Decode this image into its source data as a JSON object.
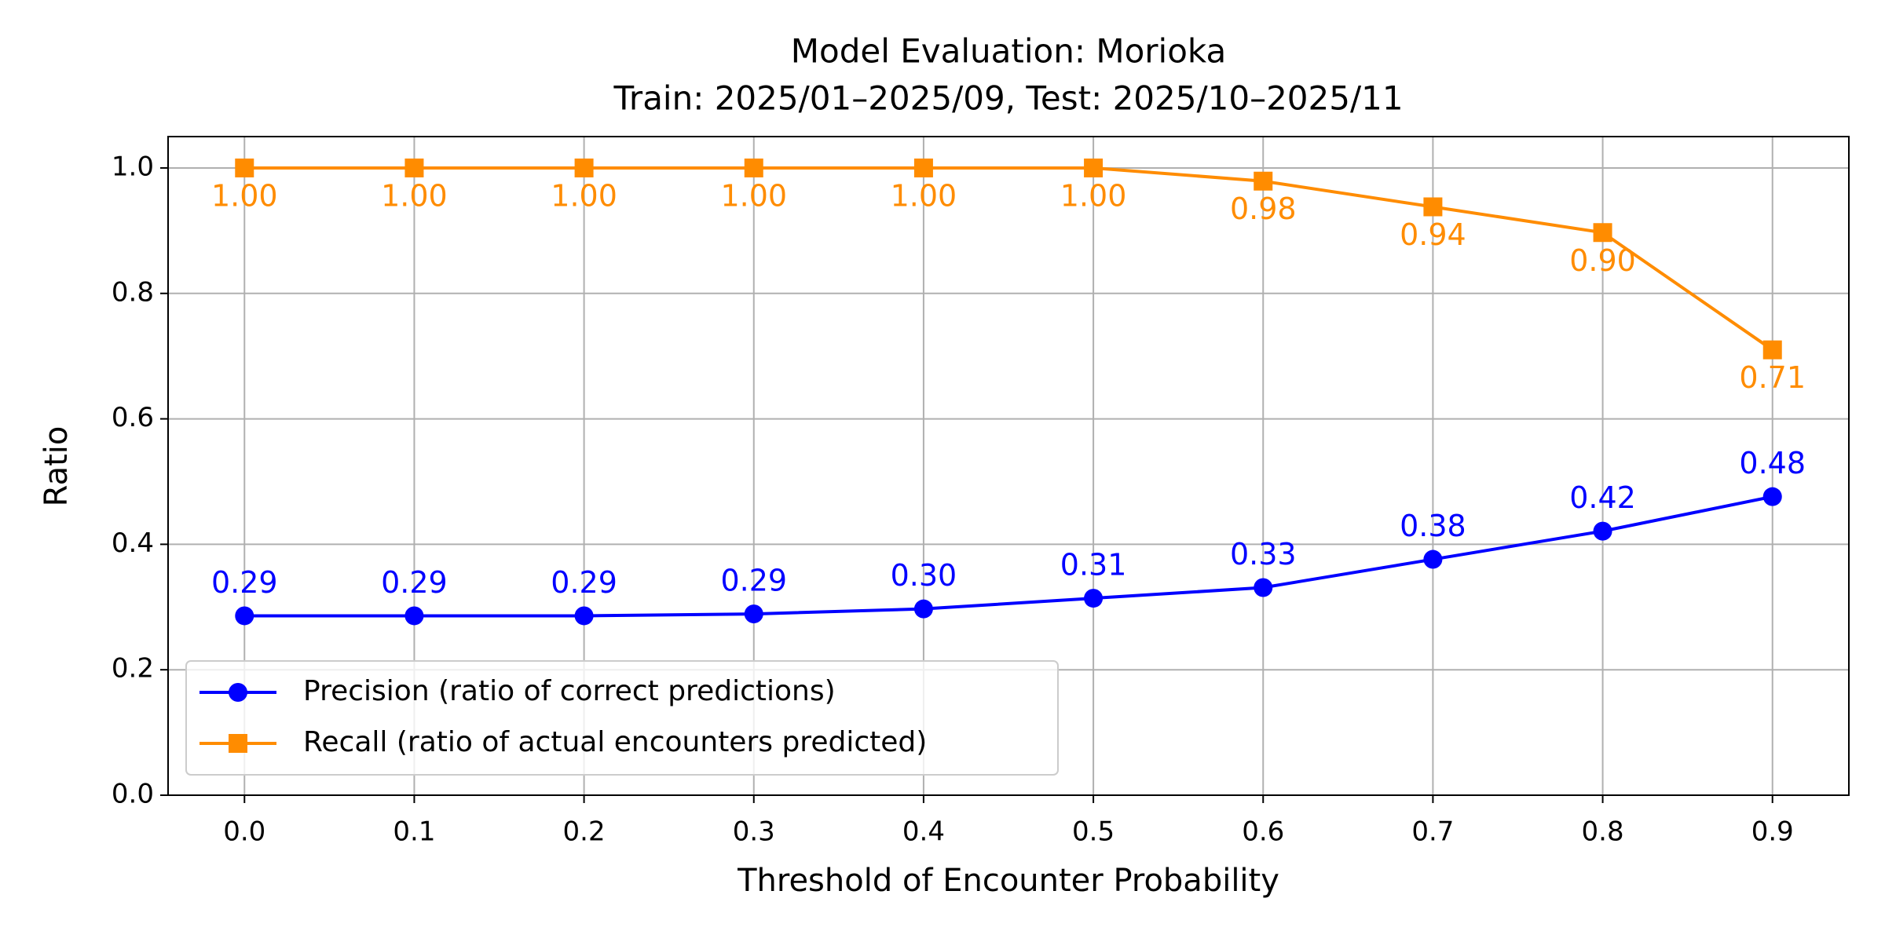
{
  "chart_data": {
    "type": "line",
    "title": "Model Evaluation: Morioka",
    "subtitle": "Train: 2025/01–2025/09, Test: 2025/10–2025/11",
    "x_label": "Threshold of Encounter Probability",
    "y_label": "Ratio",
    "x": [
      0.0,
      0.1,
      0.2,
      0.3,
      0.4,
      0.5,
      0.6,
      0.7,
      0.8,
      0.9
    ],
    "series": [
      {
        "name": "Precision (ratio of correct predictions)",
        "color": "#0000ff",
        "marker": "circle",
        "values": [
          0.286,
          0.286,
          0.286,
          0.289,
          0.297,
          0.314,
          0.331,
          0.376,
          0.421,
          0.476
        ],
        "value_labels": [
          "0.29",
          "0.29",
          "0.29",
          "0.29",
          "0.30",
          "0.31",
          "0.33",
          "0.38",
          "0.42",
          "0.48"
        ]
      },
      {
        "name": "Recall (ratio of actual encounters predicted)",
        "color": "#ff8c00",
        "marker": "square",
        "values": [
          1,
          1,
          1,
          1,
          1,
          1,
          0.979,
          0.938,
          0.897,
          0.71
        ],
        "value_labels": [
          "1.00",
          "1.00",
          "1.00",
          "1.00",
          "1.00",
          "1.00",
          "0.98",
          "0.94",
          "0.90",
          "0.71"
        ]
      }
    ],
    "xlim": [
      -0.045,
      0.945
    ],
    "ylim": [
      0,
      1.05
    ],
    "xticks": [
      {
        "value": 0,
        "label": "0.0"
      },
      0.1,
      0.2,
      0.3,
      0.4,
      0.5,
      0.6,
      0.7,
      0.8,
      0.9
    ],
    "yticks": [
      {
        "value": 0,
        "label": "0.0"
      },
      0.2,
      0.4,
      0.6,
      0.8,
      {
        "value": 1,
        "label": "1.0"
      }
    ],
    "grid": true,
    "legend": "lower left"
  }
}
